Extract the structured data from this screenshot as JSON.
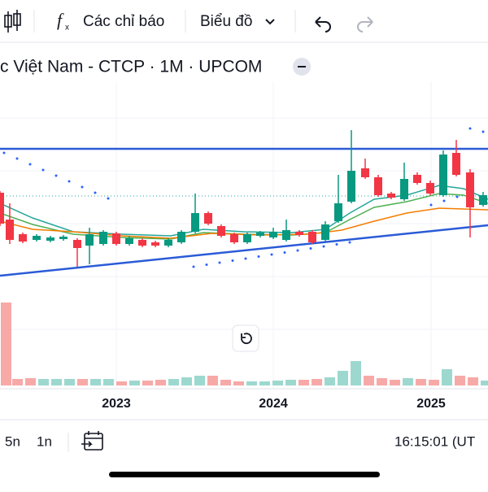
{
  "toolbar": {
    "indicators": "Các chỉ báo",
    "chart_type": "Biểu đồ"
  },
  "symbol_title": "c Việt Nam - CTCP · 1M · UPCOM",
  "x_axis": {
    "labels": [
      "2023",
      "2024",
      "2025"
    ]
  },
  "bottom_bar": {
    "ranges": [
      "5n",
      "1n"
    ],
    "clock": "16:15:01 (UT"
  }
}
